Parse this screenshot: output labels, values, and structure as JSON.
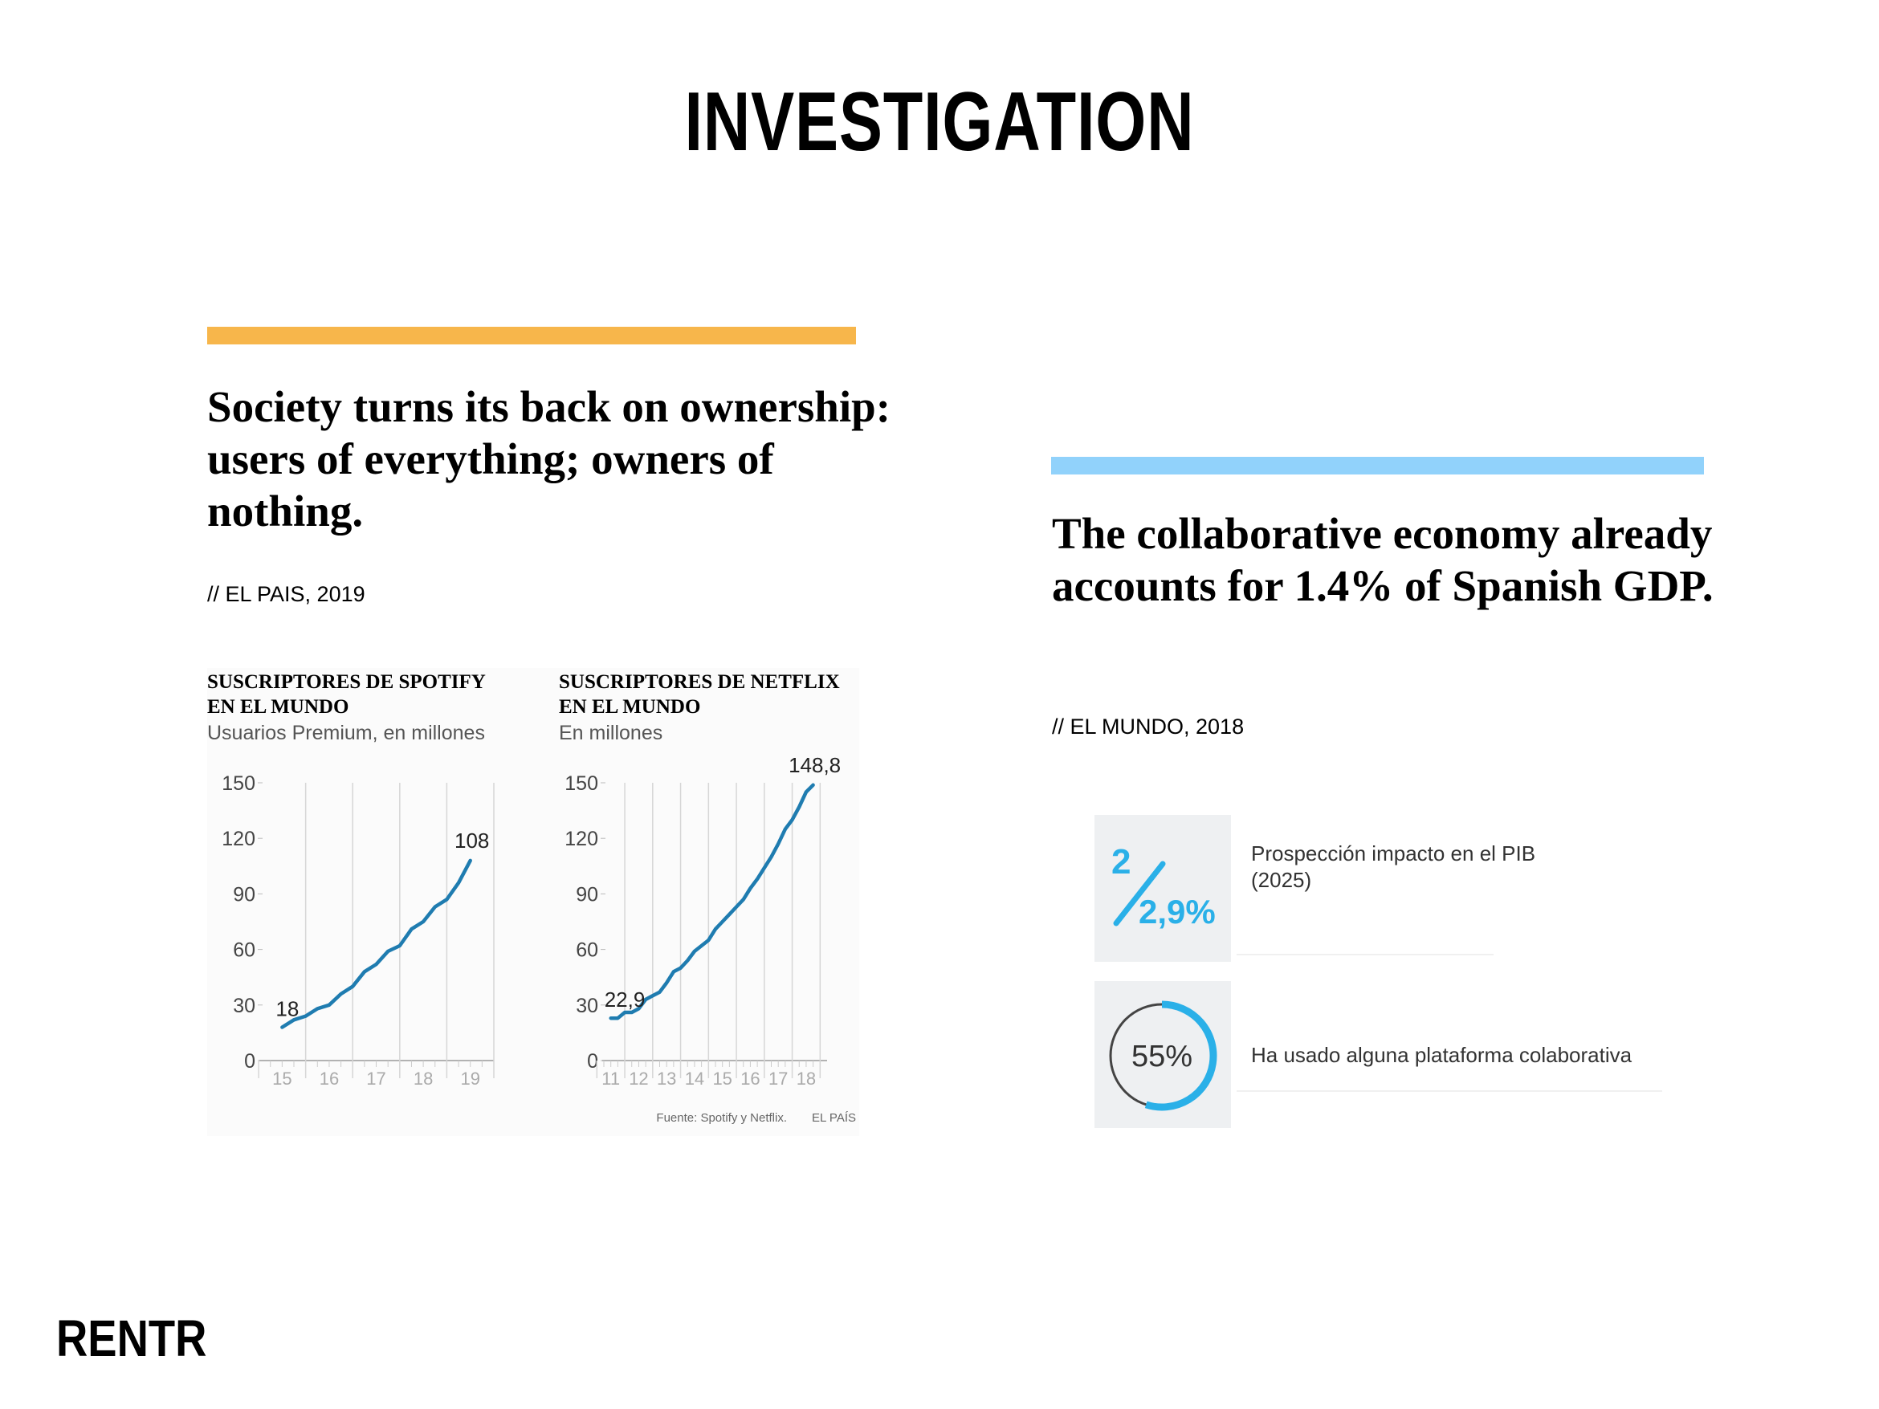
{
  "page": {
    "title": "INVESTIGATION",
    "logo": "RENTR"
  },
  "colors": {
    "left_accent": "#f7b64b",
    "right_accent": "#91d2fb",
    "line": "#1f7cb0",
    "stat_blue": "#2ab0e8"
  },
  "left_article": {
    "headline": "Society turns its back on ownership: users of everything; owners of nothing.",
    "source": "// EL PAIS, 2019"
  },
  "right_article": {
    "headline": "The collaborative economy already accounts for 1.4% of Spanish GDP.",
    "source": "// EL MUNDO, 2018"
  },
  "charts": {
    "credit": "Fuente: Spotify y Netflix.",
    "publisher": "EL PAÍS"
  },
  "chart_data": [
    {
      "type": "line",
      "title": "SUSCRIPTORES DE SPOTIFY\nEN EL MUNDO",
      "subtitle": "Usuarios Premium, en millones",
      "ylim": [
        0,
        150
      ],
      "yticks": [
        0,
        30,
        60,
        90,
        120,
        150
      ],
      "xticks": [
        "15",
        "16",
        "17",
        "18",
        "19"
      ],
      "x": [
        15.0,
        15.25,
        15.5,
        15.75,
        16.0,
        16.25,
        16.5,
        16.75,
        17.0,
        17.25,
        17.5,
        17.75,
        18.0,
        18.25,
        18.5,
        18.75,
        19.0
      ],
      "values": [
        18,
        22,
        24,
        28,
        30,
        36,
        40,
        48,
        52,
        59,
        62,
        71,
        75,
        83,
        87,
        96,
        108
      ],
      "annotations": [
        {
          "label": "18"
        },
        {
          "label": "108"
        }
      ],
      "xlim": [
        14.55,
        19.5
      ]
    },
    {
      "type": "line",
      "title": "SUSCRIPTORES DE NETFLIX\nEN EL MUNDO",
      "subtitle": "En millones",
      "ylim": [
        0,
        150
      ],
      "yticks": [
        0,
        30,
        60,
        90,
        120,
        150
      ],
      "xticks": [
        "11",
        "12",
        "13",
        "14",
        "15",
        "16",
        "17",
        "18"
      ],
      "x": [
        11.0,
        11.25,
        11.5,
        11.75,
        12.0,
        12.25,
        12.5,
        12.75,
        13.0,
        13.25,
        13.5,
        13.75,
        14.0,
        14.25,
        14.5,
        14.75,
        15.0,
        15.25,
        15.5,
        15.75,
        16.0,
        16.25,
        16.5,
        16.75,
        17.0,
        17.25,
        17.5,
        17.75,
        18.0,
        18.25
      ],
      "values": [
        22.9,
        22.9,
        26,
        26,
        28,
        33,
        35,
        37,
        42,
        48,
        50,
        54,
        59,
        62,
        65,
        71,
        75,
        79,
        83,
        87,
        93,
        98,
        104,
        110,
        117,
        125,
        130,
        137,
        145,
        148.8
      ],
      "annotations": [
        {
          "label": "22,9"
        },
        {
          "label": "148,8"
        }
      ],
      "xlim": [
        10.75,
        18.75
      ]
    }
  ],
  "stats": [
    {
      "numerator": "2",
      "denominator": "2,9%",
      "label": "Prospección impacto en el PIB (2025)"
    },
    {
      "value": "55%",
      "fraction": 0.55,
      "label": "Ha usado alguna plataforma colaborativa"
    }
  ]
}
